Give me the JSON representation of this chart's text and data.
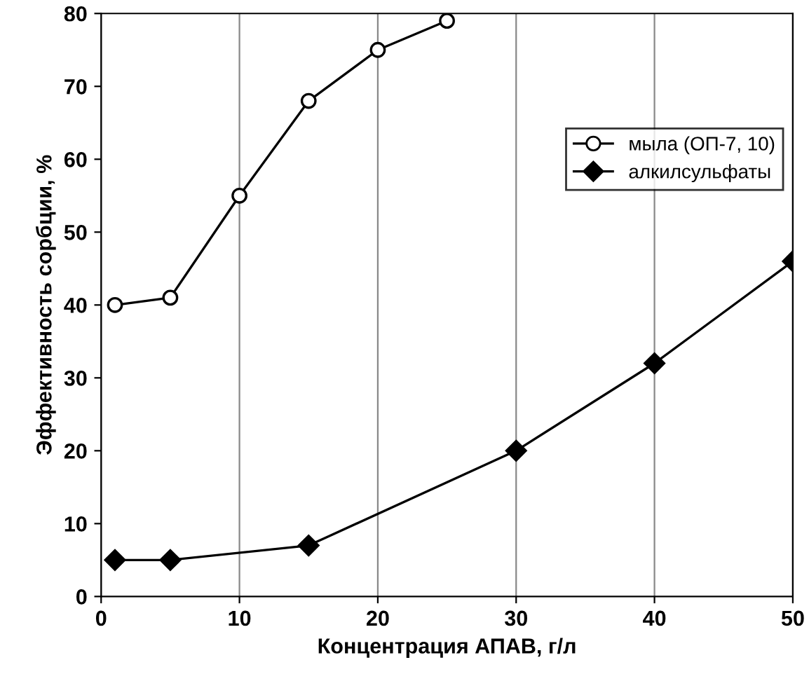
{
  "chart_data": {
    "type": "line",
    "xlabel": "Концентрация АПАВ, г/л",
    "ylabel": "Эффективность сорбции, %",
    "xlim": [
      0,
      50
    ],
    "xticks": [
      0,
      10,
      20,
      30,
      40,
      50
    ],
    "ylim": [
      0,
      80
    ],
    "yticks": [
      0,
      10,
      20,
      30,
      40,
      50,
      60,
      70,
      80
    ],
    "grid": "x",
    "legend": "right",
    "line_style": "solid",
    "series": [
      {
        "name": "мыла (ОП-7, 10)",
        "color": "#000000",
        "marker": "circle",
        "x": [
          1,
          5,
          10,
          15,
          20,
          25
        ],
        "values": [
          40,
          41,
          55,
          68,
          75,
          79
        ]
      },
      {
        "name": "алкилсульфаты",
        "color": "#000000",
        "marker": "diamond",
        "x": [
          1,
          5,
          15,
          30,
          40,
          50
        ],
        "values": [
          5,
          5,
          7,
          20,
          32,
          46
        ]
      }
    ]
  }
}
